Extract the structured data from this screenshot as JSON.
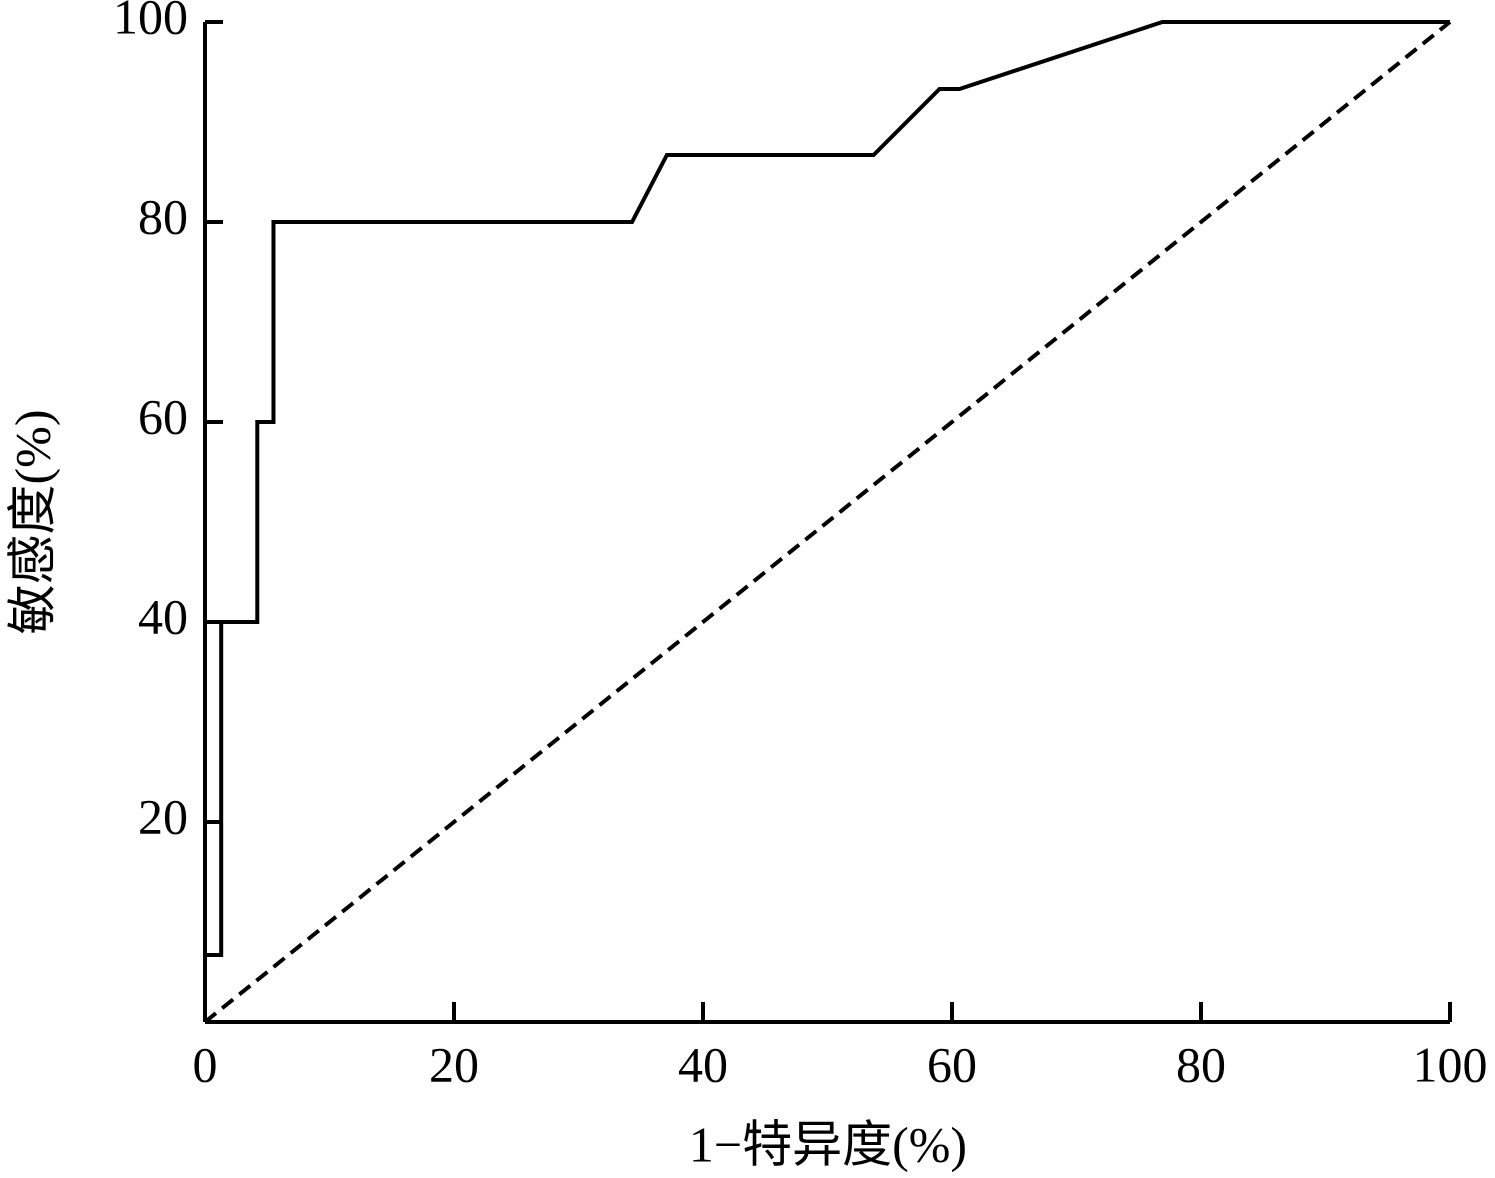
{
  "chart_data": {
    "type": "line",
    "x_label": "1−特异度(%)",
    "y_label": "敏感度(%)",
    "xlim": [
      0,
      100
    ],
    "ylim": [
      0,
      100
    ],
    "xticks": [
      0,
      20,
      40,
      60,
      80,
      100
    ],
    "yticks": [
      20,
      40,
      60,
      80,
      100
    ],
    "series": [
      {
        "color": "#000000",
        "style": "solid",
        "x": [
          0,
          0,
          1.3,
          1.3,
          4.2,
          4.2,
          5.5,
          5.5,
          34.3,
          37.1,
          53.7,
          59.0,
          60.6,
          76.9,
          100
        ],
        "values": [
          0,
          6.7,
          6.7,
          40,
          40,
          60,
          60,
          80,
          80,
          86.7,
          86.7,
          93.3,
          93.3,
          100,
          100
        ]
      },
      {
        "color": "#000000",
        "style": "dashed",
        "x": [
          0,
          100
        ],
        "values": [
          0,
          100
        ]
      }
    ]
  }
}
